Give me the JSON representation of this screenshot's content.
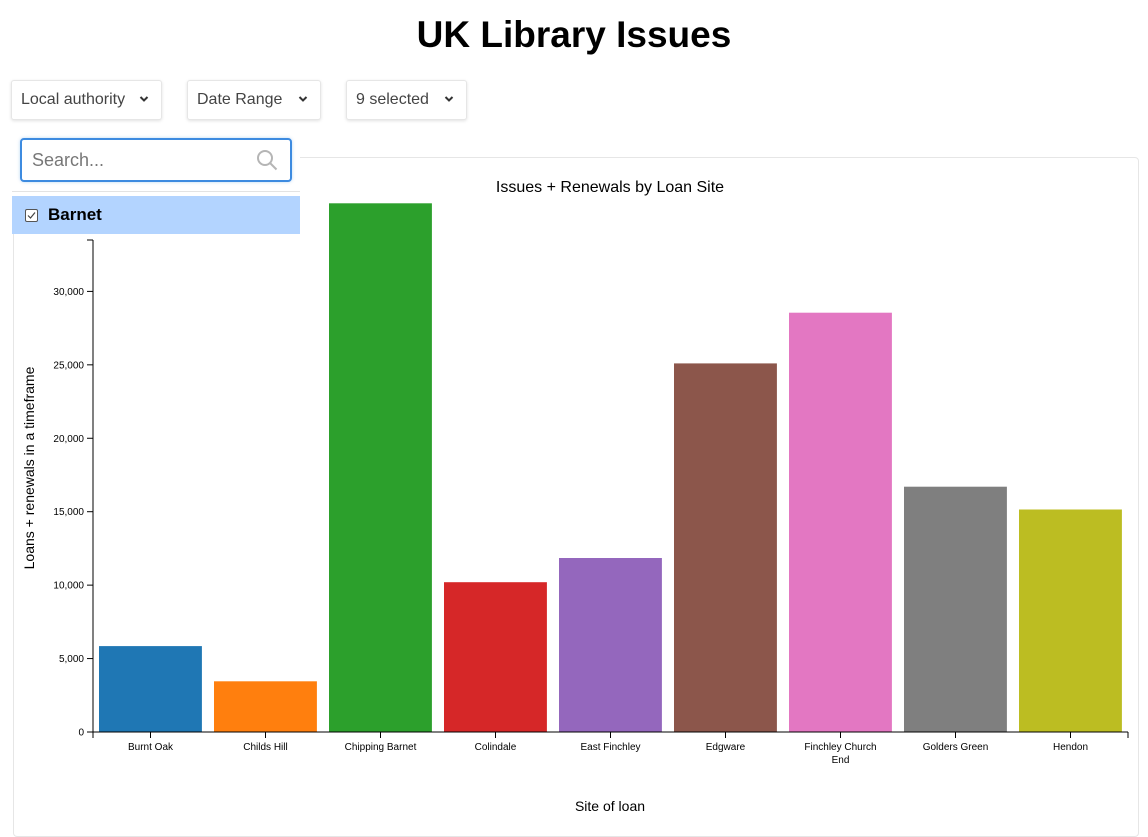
{
  "page": {
    "title": "UK Library Issues"
  },
  "filters": {
    "local_authority": {
      "label": "Local authority",
      "icon": "chevron-down-icon"
    },
    "date_range": {
      "label": "Date Range",
      "icon": "chevron-down-icon"
    },
    "sites": {
      "label": "9 selected",
      "icon": "chevron-down-icon"
    }
  },
  "authority_popup": {
    "search_placeholder": "Search...",
    "search_icon": "search-icon",
    "options": [
      {
        "label": "Barnet",
        "checked": true
      }
    ]
  },
  "chart_data": {
    "type": "bar",
    "title": "Issues + Renewals by Loan Site",
    "xlabel": "Site of loan",
    "ylabel": "Loans + renewals in a timeframe",
    "categories": [
      "Burnt Oak",
      "Childs Hill",
      "Chipping Barnet",
      "Colindale",
      "East Finchley",
      "Edgware",
      "Finchley Church End",
      "Golders Green",
      "Hendon"
    ],
    "values": [
      5850,
      3450,
      36000,
      10200,
      11850,
      25100,
      28550,
      16700,
      15150
    ],
    "colors": [
      "#1f77b4",
      "#ff7f0e",
      "#2ca02c",
      "#d62728",
      "#9467bd",
      "#8c564b",
      "#e377c2",
      "#7f7f7f",
      "#bcbd22"
    ],
    "yticks": [
      0,
      5000,
      10000,
      15000,
      20000,
      25000,
      30000
    ],
    "ytick_labels": [
      "0",
      "5,000",
      "10,000",
      "15,000",
      "20,000",
      "25,000",
      "30,000"
    ],
    "ylim": [
      0,
      33500
    ],
    "grid": false,
    "legend": "none"
  }
}
